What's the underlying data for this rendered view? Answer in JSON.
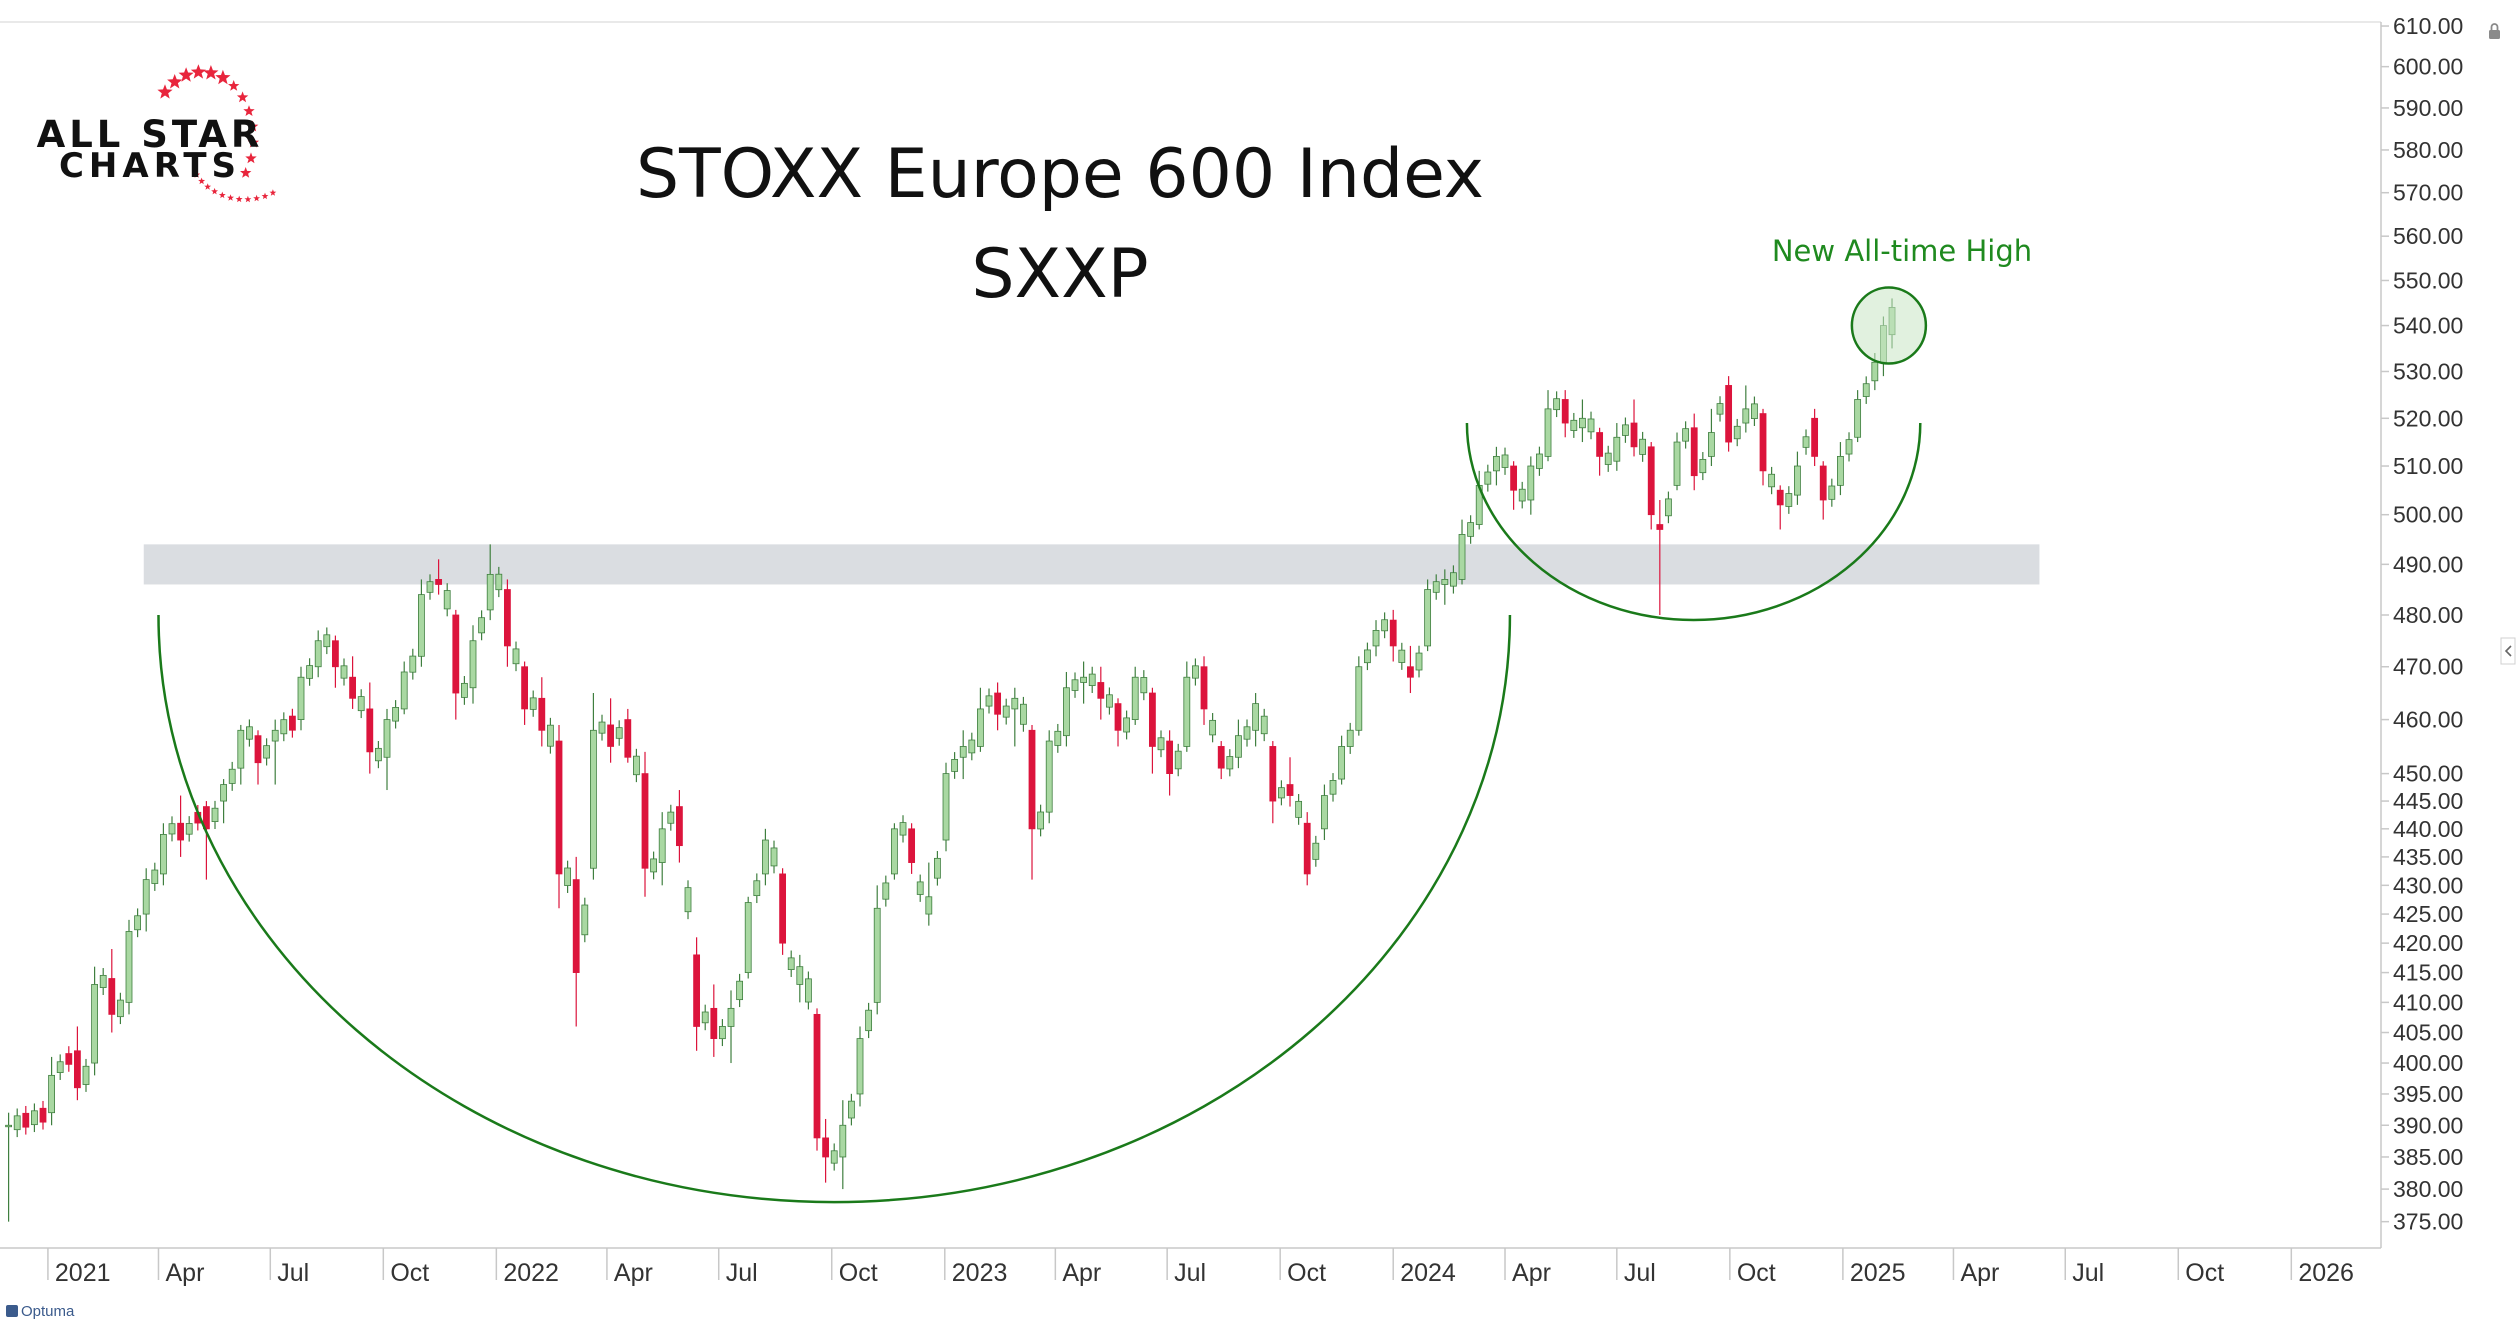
{
  "logo": {
    "line1": "ALL STAR",
    "line2": "CHARTS",
    "star_color": "#e8253c"
  },
  "title": {
    "line1": "STOXX Europe 600 Index",
    "line2": "SXXP"
  },
  "annotation": {
    "text": "New All-time High",
    "color": "#1f8a1f"
  },
  "watermark": "Optuma",
  "colors": {
    "up": "#a9d8a2",
    "up_edge": "#3f7f3f",
    "down": "#dc143c",
    "arc": "#1a7a1a",
    "zone": "#d3d7dc",
    "grid_text": "#333333",
    "axis": "#c8c8c8"
  },
  "chart_data": {
    "type": "candlestick",
    "title": "STOXX Europe 600 Index",
    "subtitle": "SXXP",
    "x_range": [
      "2020-11-23",
      "2026-03-15"
    ],
    "y_range": [
      371,
      611
    ],
    "y_scale": "log",
    "x_ticks": [
      {
        "date": "2021-01-01",
        "label": "2021"
      },
      {
        "date": "2021-04-01",
        "label": "Apr"
      },
      {
        "date": "2021-07-01",
        "label": "Jul"
      },
      {
        "date": "2021-10-01",
        "label": "Oct"
      },
      {
        "date": "2022-01-01",
        "label": "2022"
      },
      {
        "date": "2022-04-01",
        "label": "Apr"
      },
      {
        "date": "2022-07-01",
        "label": "Jul"
      },
      {
        "date": "2022-10-01",
        "label": "Oct"
      },
      {
        "date": "2023-01-01",
        "label": "2023"
      },
      {
        "date": "2023-04-01",
        "label": "Apr"
      },
      {
        "date": "2023-07-01",
        "label": "Jul"
      },
      {
        "date": "2023-10-01",
        "label": "Oct"
      },
      {
        "date": "2024-01-01",
        "label": "2024"
      },
      {
        "date": "2024-04-01",
        "label": "Apr"
      },
      {
        "date": "2024-07-01",
        "label": "Jul"
      },
      {
        "date": "2024-10-01",
        "label": "Oct"
      },
      {
        "date": "2025-01-01",
        "label": "2025"
      },
      {
        "date": "2025-04-01",
        "label": "Apr"
      },
      {
        "date": "2025-07-01",
        "label": "Jul"
      },
      {
        "date": "2025-10-01",
        "label": "Oct"
      },
      {
        "date": "2026-01-01",
        "label": "2026"
      }
    ],
    "y_ticks": [
      {
        "v": 375,
        "label": "375.00"
      },
      {
        "v": 380,
        "label": "380.00"
      },
      {
        "v": 385,
        "label": "385.00"
      },
      {
        "v": 390,
        "label": "390.00"
      },
      {
        "v": 395,
        "label": "395.00"
      },
      {
        "v": 400,
        "label": "400.00"
      },
      {
        "v": 405,
        "label": "405.00"
      },
      {
        "v": 410,
        "label": "410.00"
      },
      {
        "v": 415,
        "label": "415.00"
      },
      {
        "v": 420,
        "label": "420.00"
      },
      {
        "v": 425,
        "label": "425.00"
      },
      {
        "v": 430,
        "label": "430.00"
      },
      {
        "v": 435,
        "label": "435.00"
      },
      {
        "v": 440,
        "label": "440.00"
      },
      {
        "v": 445,
        "label": "445.00"
      },
      {
        "v": 450,
        "label": "450.00"
      },
      {
        "v": 460,
        "label": "460.00"
      },
      {
        "v": 470,
        "label": "470.00"
      },
      {
        "v": 480,
        "label": "480.00"
      },
      {
        "v": 490,
        "label": "490.00"
      },
      {
        "v": 500,
        "label": "500.00"
      },
      {
        "v": 510,
        "label": "510.00"
      },
      {
        "v": 520,
        "label": "520.00"
      },
      {
        "v": 530,
        "label": "530.00"
      },
      {
        "v": 540,
        "label": "540.00"
      },
      {
        "v": 550,
        "label": "550.00"
      },
      {
        "v": 560,
        "label": "560.00"
      },
      {
        "v": 570,
        "label": "570.00"
      },
      {
        "v": 580,
        "label": "580.00"
      },
      {
        "v": 590,
        "label": "590.00"
      },
      {
        "v": 600,
        "label": "600.00"
      },
      {
        "v": 610,
        "label": "610.00"
      }
    ],
    "resistance_zone": {
      "from": "2021-03-20",
      "to": "2025-06-10",
      "low": 486,
      "high": 494
    },
    "cup_arc": {
      "start_date": "2021-04-01",
      "start_value": 480,
      "end_date": "2024-04-05",
      "end_value": 480,
      "bottom_date": "2022-10-10",
      "bottom_value": 378
    },
    "handle_arc": {
      "start_date": "2024-03-01",
      "start_value": 519,
      "end_date": "2025-03-05",
      "end_value": 519,
      "bottom_date": "2024-08-20",
      "bottom_value": 479
    },
    "highlight": {
      "date": "2025-02-05",
      "value": 540
    },
    "candles_weekly": [
      {
        "d": "2020-11-30",
        "o": 390.0,
        "h": 392.0,
        "l": 375.0,
        "c": 390.0
      },
      {
        "d": "2021-01-04",
        "o": 392.0,
        "h": 401.0,
        "l": 390.0,
        "c": 398.0
      },
      {
        "d": "2021-01-25",
        "o": 402.0,
        "h": 406.0,
        "l": 394.0,
        "c": 396.0
      },
      {
        "d": "2021-02-08",
        "o": 400.0,
        "h": 416.0,
        "l": 398.0,
        "c": 413.0
      },
      {
        "d": "2021-02-22",
        "o": 414.0,
        "h": 419.0,
        "l": 405.0,
        "c": 408.0
      },
      {
        "d": "2021-03-08",
        "o": 410.0,
        "h": 424.0,
        "l": 408.0,
        "c": 422.0
      },
      {
        "d": "2021-03-22",
        "o": 425.0,
        "h": 433.0,
        "l": 422.0,
        "c": 431.0
      },
      {
        "d": "2021-04-05",
        "o": 432.0,
        "h": 441.0,
        "l": 430.0,
        "c": 439.0
      },
      {
        "d": "2021-04-19",
        "o": 441.0,
        "h": 446.0,
        "l": 435.0,
        "c": 438.0
      },
      {
        "d": "2021-05-10",
        "o": 444.0,
        "h": 445.0,
        "l": 431.0,
        "c": 440.0
      },
      {
        "d": "2021-05-24",
        "o": 445.0,
        "h": 449.0,
        "l": 441.0,
        "c": 448.0
      },
      {
        "d": "2021-06-07",
        "o": 451.0,
        "h": 459.0,
        "l": 448.0,
        "c": 458.0
      },
      {
        "d": "2021-06-21",
        "o": 457.0,
        "h": 458.0,
        "l": 448.0,
        "c": 452.0
      },
      {
        "d": "2021-07-05",
        "o": 456.0,
        "h": 460.0,
        "l": 448.0,
        "c": 458.0
      },
      {
        "d": "2021-07-26",
        "o": 460.0,
        "h": 470.0,
        "l": 458.0,
        "c": 468.0
      },
      {
        "d": "2021-08-09",
        "o": 470.0,
        "h": 477.0,
        "l": 468.0,
        "c": 475.0
      },
      {
        "d": "2021-08-23",
        "o": 475.0,
        "h": 476.0,
        "l": 466.0,
        "c": 470.0
      },
      {
        "d": "2021-09-06",
        "o": 468.0,
        "h": 472.0,
        "l": 462.0,
        "c": 464.0
      },
      {
        "d": "2021-09-20",
        "o": 462.0,
        "h": 467.0,
        "l": 450.0,
        "c": 454.0
      },
      {
        "d": "2021-10-04",
        "o": 453.0,
        "h": 462.0,
        "l": 447.0,
        "c": 460.0
      },
      {
        "d": "2021-10-18",
        "o": 462.0,
        "h": 471.0,
        "l": 461.0,
        "c": 469.0
      },
      {
        "d": "2021-11-01",
        "o": 472.0,
        "h": 487.0,
        "l": 470.0,
        "c": 484.0
      },
      {
        "d": "2021-11-15",
        "o": 487.0,
        "h": 491.0,
        "l": 484.0,
        "c": 486.0
      },
      {
        "d": "2021-11-29",
        "o": 480.0,
        "h": 481.0,
        "l": 460.0,
        "c": 465.0
      },
      {
        "d": "2021-12-13",
        "o": 466.0,
        "h": 478.0,
        "l": 463.0,
        "c": 475.0
      },
      {
        "d": "2021-12-27",
        "o": 481.0,
        "h": 494.0,
        "l": 479.0,
        "c": 488.0
      },
      {
        "d": "2022-01-10",
        "o": 485.0,
        "h": 487.0,
        "l": 470.0,
        "c": 474.0
      },
      {
        "d": "2022-01-24",
        "o": 470.0,
        "h": 471.0,
        "l": 459.0,
        "c": 462.0
      },
      {
        "d": "2022-02-07",
        "o": 464.0,
        "h": 468.0,
        "l": 455.0,
        "c": 458.0
      },
      {
        "d": "2022-02-21",
        "o": 456.0,
        "h": 459.0,
        "l": 426.0,
        "c": 432.0
      },
      {
        "d": "2022-03-07",
        "o": 431.0,
        "h": 435.0,
        "l": 406.0,
        "c": 415.0
      },
      {
        "d": "2022-03-21",
        "o": 433.0,
        "h": 465.0,
        "l": 431.0,
        "c": 458.0
      },
      {
        "d": "2022-04-04",
        "o": 459.0,
        "h": 464.0,
        "l": 452.0,
        "c": 455.0
      },
      {
        "d": "2022-04-18",
        "o": 460.0,
        "h": 462.0,
        "l": 452.0,
        "c": 453.0
      },
      {
        "d": "2022-05-02",
        "o": 450.0,
        "h": 454.0,
        "l": 428.0,
        "c": 433.0
      },
      {
        "d": "2022-05-16",
        "o": 434.0,
        "h": 443.0,
        "l": 430.0,
        "c": 440.0
      },
      {
        "d": "2022-05-30",
        "o": 444.0,
        "h": 447.0,
        "l": 434.0,
        "c": 437.0
      },
      {
        "d": "2022-06-13",
        "o": 418.0,
        "h": 421.0,
        "l": 402.0,
        "c": 406.0
      },
      {
        "d": "2022-06-27",
        "o": 409.0,
        "h": 413.0,
        "l": 401.0,
        "c": 404.0
      },
      {
        "d": "2022-07-11",
        "o": 406.0,
        "h": 412.0,
        "l": 400.0,
        "c": 409.0
      },
      {
        "d": "2022-07-25",
        "o": 415.0,
        "h": 428.0,
        "l": 414.0,
        "c": 427.0
      },
      {
        "d": "2022-08-08",
        "o": 432.0,
        "h": 440.0,
        "l": 430.0,
        "c": 438.0
      },
      {
        "d": "2022-08-22",
        "o": 432.0,
        "h": 433.0,
        "l": 418.0,
        "c": 420.0
      },
      {
        "d": "2022-09-05",
        "o": 413.0,
        "h": 418.0,
        "l": 410.0,
        "c": 416.0
      },
      {
        "d": "2022-09-19",
        "o": 408.0,
        "h": 409.0,
        "l": 386.0,
        "c": 388.0
      },
      {
        "d": "2022-09-26",
        "o": 388.0,
        "h": 391.0,
        "l": 381.0,
        "c": 385.0
      },
      {
        "d": "2022-10-10",
        "o": 385.0,
        "h": 394.0,
        "l": 380.0,
        "c": 390.0
      },
      {
        "d": "2022-10-24",
        "o": 395.0,
        "h": 406.0,
        "l": 393.0,
        "c": 404.0
      },
      {
        "d": "2022-11-07",
        "o": 410.0,
        "h": 430.0,
        "l": 408.0,
        "c": 426.0
      },
      {
        "d": "2022-11-21",
        "o": 432.0,
        "h": 441.0,
        "l": 431.0,
        "c": 440.0
      },
      {
        "d": "2022-12-05",
        "o": 440.0,
        "h": 441.0,
        "l": 432.0,
        "c": 434.0
      },
      {
        "d": "2022-12-19",
        "o": 425.0,
        "h": 434.0,
        "l": 423.0,
        "c": 428.0
      },
      {
        "d": "2023-01-02",
        "o": 438.0,
        "h": 452.0,
        "l": 436.0,
        "c": 450.0
      },
      {
        "d": "2023-01-16",
        "o": 453.0,
        "h": 458.0,
        "l": 449.0,
        "c": 455.0
      },
      {
        "d": "2023-01-30",
        "o": 455.0,
        "h": 466.0,
        "l": 454.0,
        "c": 462.0
      },
      {
        "d": "2023-02-13",
        "o": 465.0,
        "h": 467.0,
        "l": 458.0,
        "c": 461.0
      },
      {
        "d": "2023-02-27",
        "o": 462.0,
        "h": 466.0,
        "l": 455.0,
        "c": 464.0
      },
      {
        "d": "2023-03-13",
        "o": 458.0,
        "h": 459.0,
        "l": 431.0,
        "c": 440.0
      },
      {
        "d": "2023-03-27",
        "o": 443.0,
        "h": 458.0,
        "l": 441.0,
        "c": 456.0
      },
      {
        "d": "2023-04-10",
        "o": 457.0,
        "h": 469.0,
        "l": 455.0,
        "c": 466.0
      },
      {
        "d": "2023-04-24",
        "o": 467.0,
        "h": 471.0,
        "l": 463.0,
        "c": 468.0
      },
      {
        "d": "2023-05-08",
        "o": 467.0,
        "h": 470.0,
        "l": 460.0,
        "c": 464.0
      },
      {
        "d": "2023-05-22",
        "o": 463.0,
        "h": 464.0,
        "l": 455.0,
        "c": 458.0
      },
      {
        "d": "2023-06-05",
        "o": 460.0,
        "h": 470.0,
        "l": 459.0,
        "c": 468.0
      },
      {
        "d": "2023-06-19",
        "o": 465.0,
        "h": 466.0,
        "l": 450.0,
        "c": 455.0
      },
      {
        "d": "2023-07-03",
        "o": 456.0,
        "h": 458.0,
        "l": 446.0,
        "c": 450.0
      },
      {
        "d": "2023-07-17",
        "o": 455.0,
        "h": 471.0,
        "l": 454.0,
        "c": 468.0
      },
      {
        "d": "2023-07-31",
        "o": 470.0,
        "h": 472.0,
        "l": 459.0,
        "c": 462.0
      },
      {
        "d": "2023-08-14",
        "o": 455.0,
        "h": 456.0,
        "l": 449.0,
        "c": 451.0
      },
      {
        "d": "2023-08-28",
        "o": 453.0,
        "h": 460.0,
        "l": 451.0,
        "c": 457.0
      },
      {
        "d": "2023-09-11",
        "o": 458.0,
        "h": 465.0,
        "l": 455.0,
        "c": 463.0
      },
      {
        "d": "2023-09-25",
        "o": 455.0,
        "h": 456.0,
        "l": 441.0,
        "c": 445.0
      },
      {
        "d": "2023-10-09",
        "o": 448.0,
        "h": 453.0,
        "l": 444.0,
        "c": 446.0
      },
      {
        "d": "2023-10-23",
        "o": 441.0,
        "h": 443.0,
        "l": 430.0,
        "c": 432.0
      },
      {
        "d": "2023-11-06",
        "o": 440.0,
        "h": 448.0,
        "l": 438.0,
        "c": 446.0
      },
      {
        "d": "2023-11-20",
        "o": 449.0,
        "h": 457.0,
        "l": 448.0,
        "c": 455.0
      },
      {
        "d": "2023-12-04",
        "o": 458.0,
        "h": 472.0,
        "l": 457.0,
        "c": 470.0
      },
      {
        "d": "2023-12-18",
        "o": 474.0,
        "h": 479.0,
        "l": 472.0,
        "c": 477.0
      },
      {
        "d": "2024-01-01",
        "o": 479.0,
        "h": 481.0,
        "l": 471.0,
        "c": 474.0
      },
      {
        "d": "2024-01-15",
        "o": 470.0,
        "h": 474.0,
        "l": 465.0,
        "c": 468.0
      },
      {
        "d": "2024-01-29",
        "o": 474.0,
        "h": 487.0,
        "l": 473.0,
        "c": 485.0
      },
      {
        "d": "2024-02-12",
        "o": 486.0,
        "h": 489.0,
        "l": 482.0,
        "c": 487.0
      },
      {
        "d": "2024-02-26",
        "o": 487.0,
        "h": 499.0,
        "l": 486.0,
        "c": 496.0
      },
      {
        "d": "2024-03-11",
        "o": 498.0,
        "h": 509.0,
        "l": 497.0,
        "c": 506.0
      },
      {
        "d": "2024-03-25",
        "o": 509.0,
        "h": 514.0,
        "l": 506.0,
        "c": 512.0
      },
      {
        "d": "2024-04-08",
        "o": 510.0,
        "h": 511.0,
        "l": 501.0,
        "c": 505.0
      },
      {
        "d": "2024-04-22",
        "o": 503.0,
        "h": 512.0,
        "l": 500.0,
        "c": 510.0
      },
      {
        "d": "2024-05-06",
        "o": 512.0,
        "h": 526.0,
        "l": 511.0,
        "c": 522.0
      },
      {
        "d": "2024-05-20",
        "o": 524.0,
        "h": 526.0,
        "l": 516.0,
        "c": 519.0
      },
      {
        "d": "2024-06-03",
        "o": 518.0,
        "h": 524.0,
        "l": 515.0,
        "c": 520.0
      },
      {
        "d": "2024-06-17",
        "o": 517.0,
        "h": 518.0,
        "l": 508.0,
        "c": 512.0
      },
      {
        "d": "2024-07-01",
        "o": 511.0,
        "h": 519.0,
        "l": 509.0,
        "c": 516.0
      },
      {
        "d": "2024-07-15",
        "o": 519.0,
        "h": 524.0,
        "l": 512.0,
        "c": 514.0
      },
      {
        "d": "2024-07-29",
        "o": 514.0,
        "h": 515.0,
        "l": 497.0,
        "c": 500.0
      },
      {
        "d": "2024-08-05",
        "o": 498.0,
        "h": 503.0,
        "l": 480.0,
        "c": 497.0
      },
      {
        "d": "2024-08-19",
        "o": 506.0,
        "h": 517.0,
        "l": 505.0,
        "c": 515.0
      },
      {
        "d": "2024-09-02",
        "o": 518.0,
        "h": 521.0,
        "l": 505.0,
        "c": 508.0
      },
      {
        "d": "2024-09-16",
        "o": 512.0,
        "h": 522.0,
        "l": 510.0,
        "c": 517.0
      },
      {
        "d": "2024-09-30",
        "o": 527.0,
        "h": 529.0,
        "l": 513.0,
        "c": 515.0
      },
      {
        "d": "2024-10-14",
        "o": 519.0,
        "h": 527.0,
        "l": 517.0,
        "c": 522.0
      },
      {
        "d": "2024-10-28",
        "o": 521.0,
        "h": 522.0,
        "l": 506.0,
        "c": 509.0
      },
      {
        "d": "2024-11-11",
        "o": 505.0,
        "h": 506.0,
        "l": 497.0,
        "c": 502.0
      },
      {
        "d": "2024-11-25",
        "o": 504.0,
        "h": 513.0,
        "l": 502.0,
        "c": 510.0
      },
      {
        "d": "2024-12-09",
        "o": 520.0,
        "h": 522.0,
        "l": 510.0,
        "c": 512.0
      },
      {
        "d": "2024-12-16",
        "o": 510.0,
        "h": 511.0,
        "l": 499.0,
        "c": 503.0
      },
      {
        "d": "2024-12-30",
        "o": 506.0,
        "h": 515.0,
        "l": 504.0,
        "c": 512.0
      },
      {
        "d": "2025-01-13",
        "o": 516.0,
        "h": 526.0,
        "l": 515.0,
        "c": 524.0
      },
      {
        "d": "2025-01-27",
        "o": 528.0,
        "h": 534.0,
        "l": 526.0,
        "c": 532.0
      },
      {
        "d": "2025-02-03",
        "o": 532.0,
        "h": 542.0,
        "l": 529.0,
        "c": 540.0
      },
      {
        "d": "2025-02-10",
        "o": 538.0,
        "h": 546.0,
        "l": 535.0,
        "c": 544.0
      }
    ]
  }
}
